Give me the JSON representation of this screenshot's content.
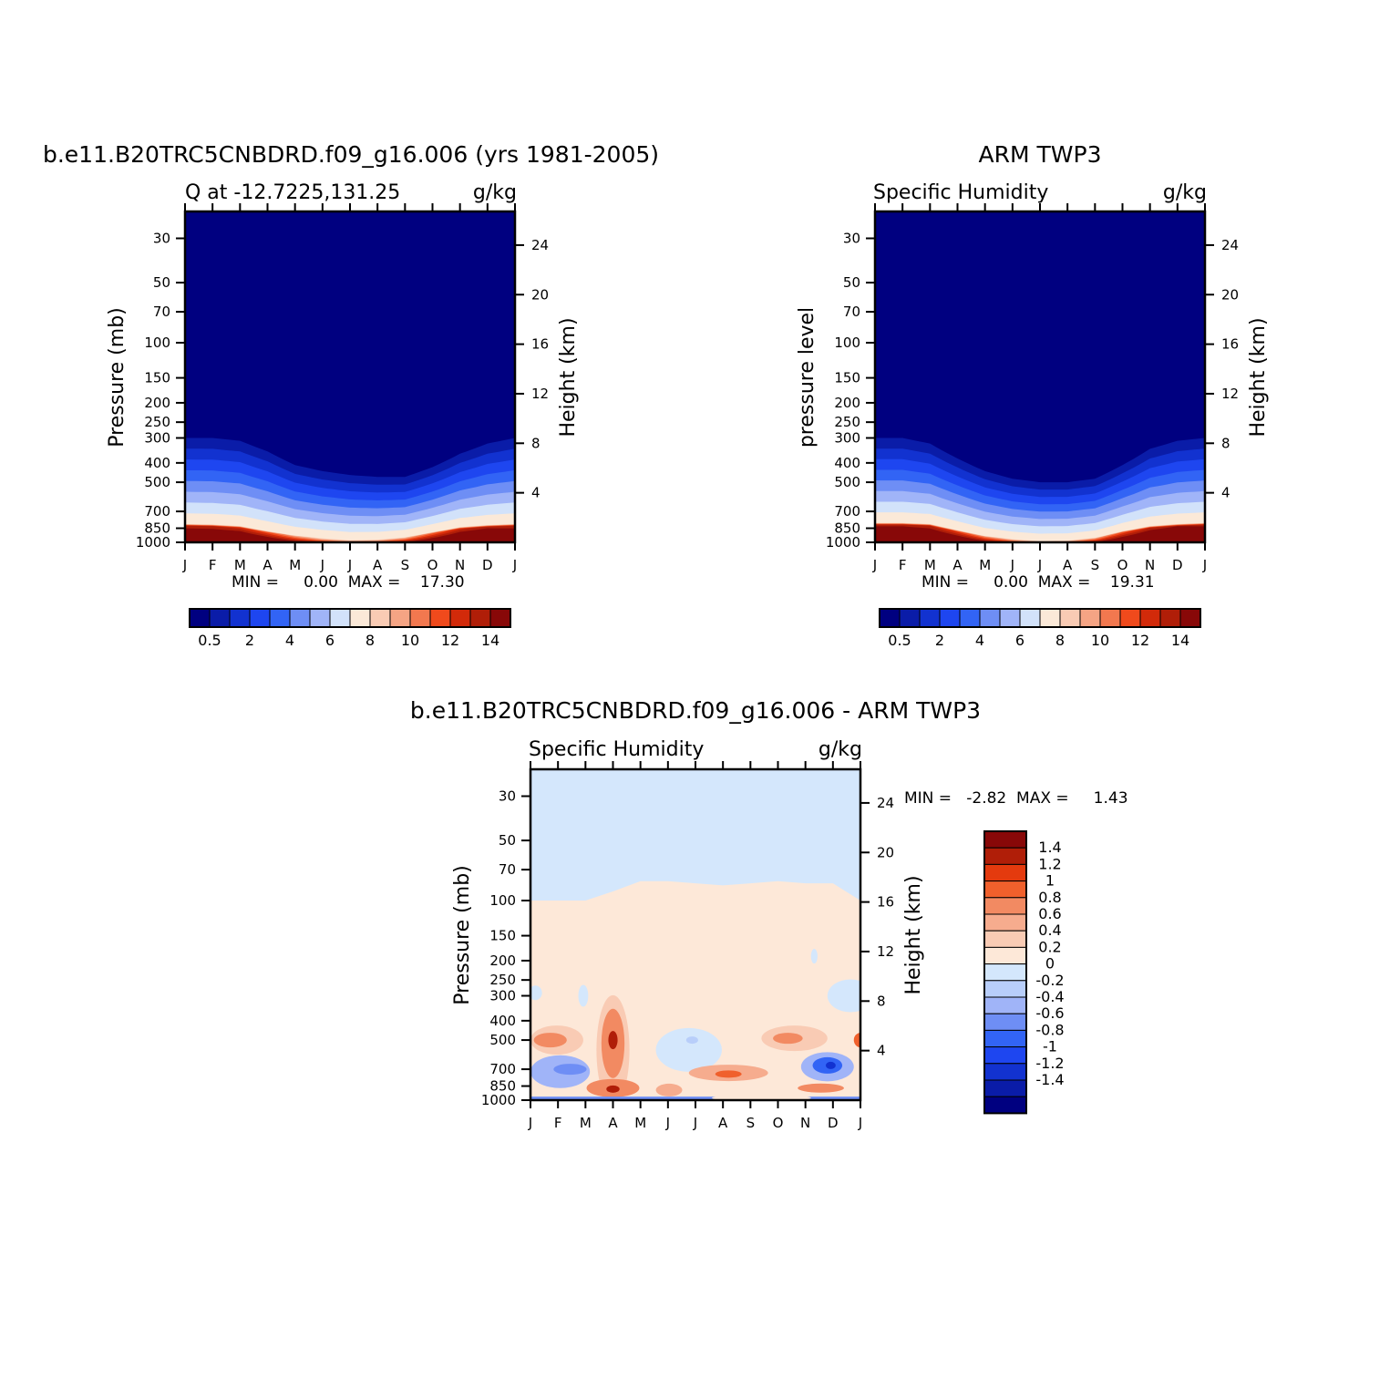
{
  "colors": {
    "q_levels": [
      "#000080",
      "#0a1ca8",
      "#1232d0",
      "#1e46f0",
      "#3264f5",
      "#6e8ef5",
      "#a0b4f8",
      "#d2e2fa",
      "#fbe9d8",
      "#f9cbb4",
      "#f5a484",
      "#f2784f",
      "#f04a1c",
      "#d22a0a",
      "#b01e08",
      "#880808"
    ],
    "diff_levels": [
      "#000080",
      "#0a1ca8",
      "#1232d0",
      "#1e46f0",
      "#3264f5",
      "#6e8ef5",
      "#a0b4f8",
      "#b8cefa",
      "#d4e7fc",
      "#fde8d8",
      "#f9cbb4",
      "#f6ac8e",
      "#f28a62",
      "#f0602c",
      "#e43a0e",
      "#b01e08",
      "#880808"
    ]
  },
  "chart_data": [
    {
      "id": "model",
      "type": "heatmap",
      "title": "b.e11.B20TRC5CNBDRD.f09_g16.006 (yrs 1981-2005)",
      "subtitle_left": "Q at -12.7225,131.25",
      "subtitle_right": "g/kg",
      "ylabel": "Pressure (mb)",
      "y2label": "Height (km)",
      "x_ticks": [
        "J",
        "F",
        "M",
        "A",
        "M",
        "J",
        "J",
        "A",
        "S",
        "O",
        "N",
        "D",
        "J"
      ],
      "y_ticks": [
        "30",
        "50",
        "70",
        "100",
        "150",
        "200",
        "250",
        "300",
        "400",
        "500",
        "700",
        "850",
        "1000"
      ],
      "y2_ticks": [
        "24",
        "20",
        "16",
        "12",
        "8",
        "4"
      ],
      "stats": "MIN =     0.00  MAX =    17.30",
      "colorbar_labels": [
        "0.5",
        "2",
        "4",
        "6",
        "8",
        "10",
        "12",
        "14"
      ],
      "months": [
        "J",
        "F",
        "M",
        "A",
        "M",
        "J",
        "J",
        "A",
        "S",
        "O",
        "N",
        "D",
        "J"
      ],
      "moist_top_mb": [
        300,
        300,
        310,
        350,
        410,
        440,
        460,
        470,
        470,
        420,
        360,
        320,
        300
      ],
      "warm_top_mb": [
        810,
        815,
        830,
        880,
        925,
        955,
        975,
        970,
        945,
        890,
        840,
        820,
        810
      ],
      "surface_max": [
        14.5,
        14.5,
        14.0,
        12.5,
        10.5,
        9.0,
        8.5,
        9.0,
        10.0,
        12.0,
        14.0,
        15.0,
        14.5
      ]
    },
    {
      "id": "obs",
      "type": "heatmap",
      "title": "ARM TWP3",
      "subtitle_left": "Specific Humidity",
      "subtitle_right": "g/kg",
      "ylabel": "pressure level",
      "y2label": "Height (km)",
      "x_ticks": [
        "J",
        "F",
        "M",
        "A",
        "M",
        "J",
        "J",
        "A",
        "S",
        "O",
        "N",
        "D",
        "J"
      ],
      "y_ticks": [
        "30",
        "50",
        "70",
        "100",
        "150",
        "200",
        "250",
        "300",
        "400",
        "500",
        "700",
        "850",
        "1000"
      ],
      "y2_ticks": [
        "24",
        "20",
        "16",
        "12",
        "8",
        "4"
      ],
      "stats": "MIN =     0.00  MAX =    19.31",
      "colorbar_labels": [
        "0.5",
        "2",
        "4",
        "6",
        "8",
        "10",
        "12",
        "14"
      ],
      "months": [
        "J",
        "F",
        "M",
        "A",
        "M",
        "J",
        "J",
        "A",
        "S",
        "O",
        "N",
        "D",
        "J"
      ],
      "moist_top_mb": [
        300,
        300,
        320,
        380,
        440,
        480,
        500,
        500,
        480,
        410,
        340,
        310,
        300
      ],
      "warm_top_mb": [
        800,
        800,
        810,
        870,
        930,
        965,
        985,
        980,
        950,
        880,
        830,
        810,
        800
      ],
      "surface_max": [
        15.0,
        15.0,
        14.5,
        13.0,
        11.0,
        9.5,
        8.5,
        9.0,
        10.5,
        12.5,
        14.5,
        15.5,
        15.0
      ]
    },
    {
      "id": "diff",
      "type": "heatmap",
      "title": "b.e11.B20TRC5CNBDRD.f09_g16.006 - ARM TWP3",
      "subtitle_left": "Specific Humidity",
      "subtitle_right": "g/kg",
      "ylabel": "Pressure (mb)",
      "y2label": "Height (km)",
      "x_ticks": [
        "J",
        "F",
        "M",
        "A",
        "M",
        "J",
        "J",
        "A",
        "S",
        "O",
        "N",
        "D",
        "J"
      ],
      "y_ticks": [
        "30",
        "50",
        "70",
        "100",
        "150",
        "200",
        "250",
        "300",
        "400",
        "500",
        "700",
        "850",
        "1000"
      ],
      "y2_ticks": [
        "24",
        "20",
        "16",
        "12",
        "8",
        "4"
      ],
      "stats": "MIN =   -2.82  MAX =     1.43",
      "colorbar_labels": [
        "1.4",
        "1.2",
        "1",
        "0.8",
        "0.6",
        "0.4",
        "0.2",
        "0",
        "-0.2",
        "-0.4",
        "-0.6",
        "-0.8",
        "-1",
        "-1.2",
        "-1.4"
      ],
      "upper_boundary_mb": [
        100,
        100,
        100,
        90,
        80,
        80,
        82,
        84,
        82,
        80,
        82,
        82,
        100
      ]
    }
  ]
}
